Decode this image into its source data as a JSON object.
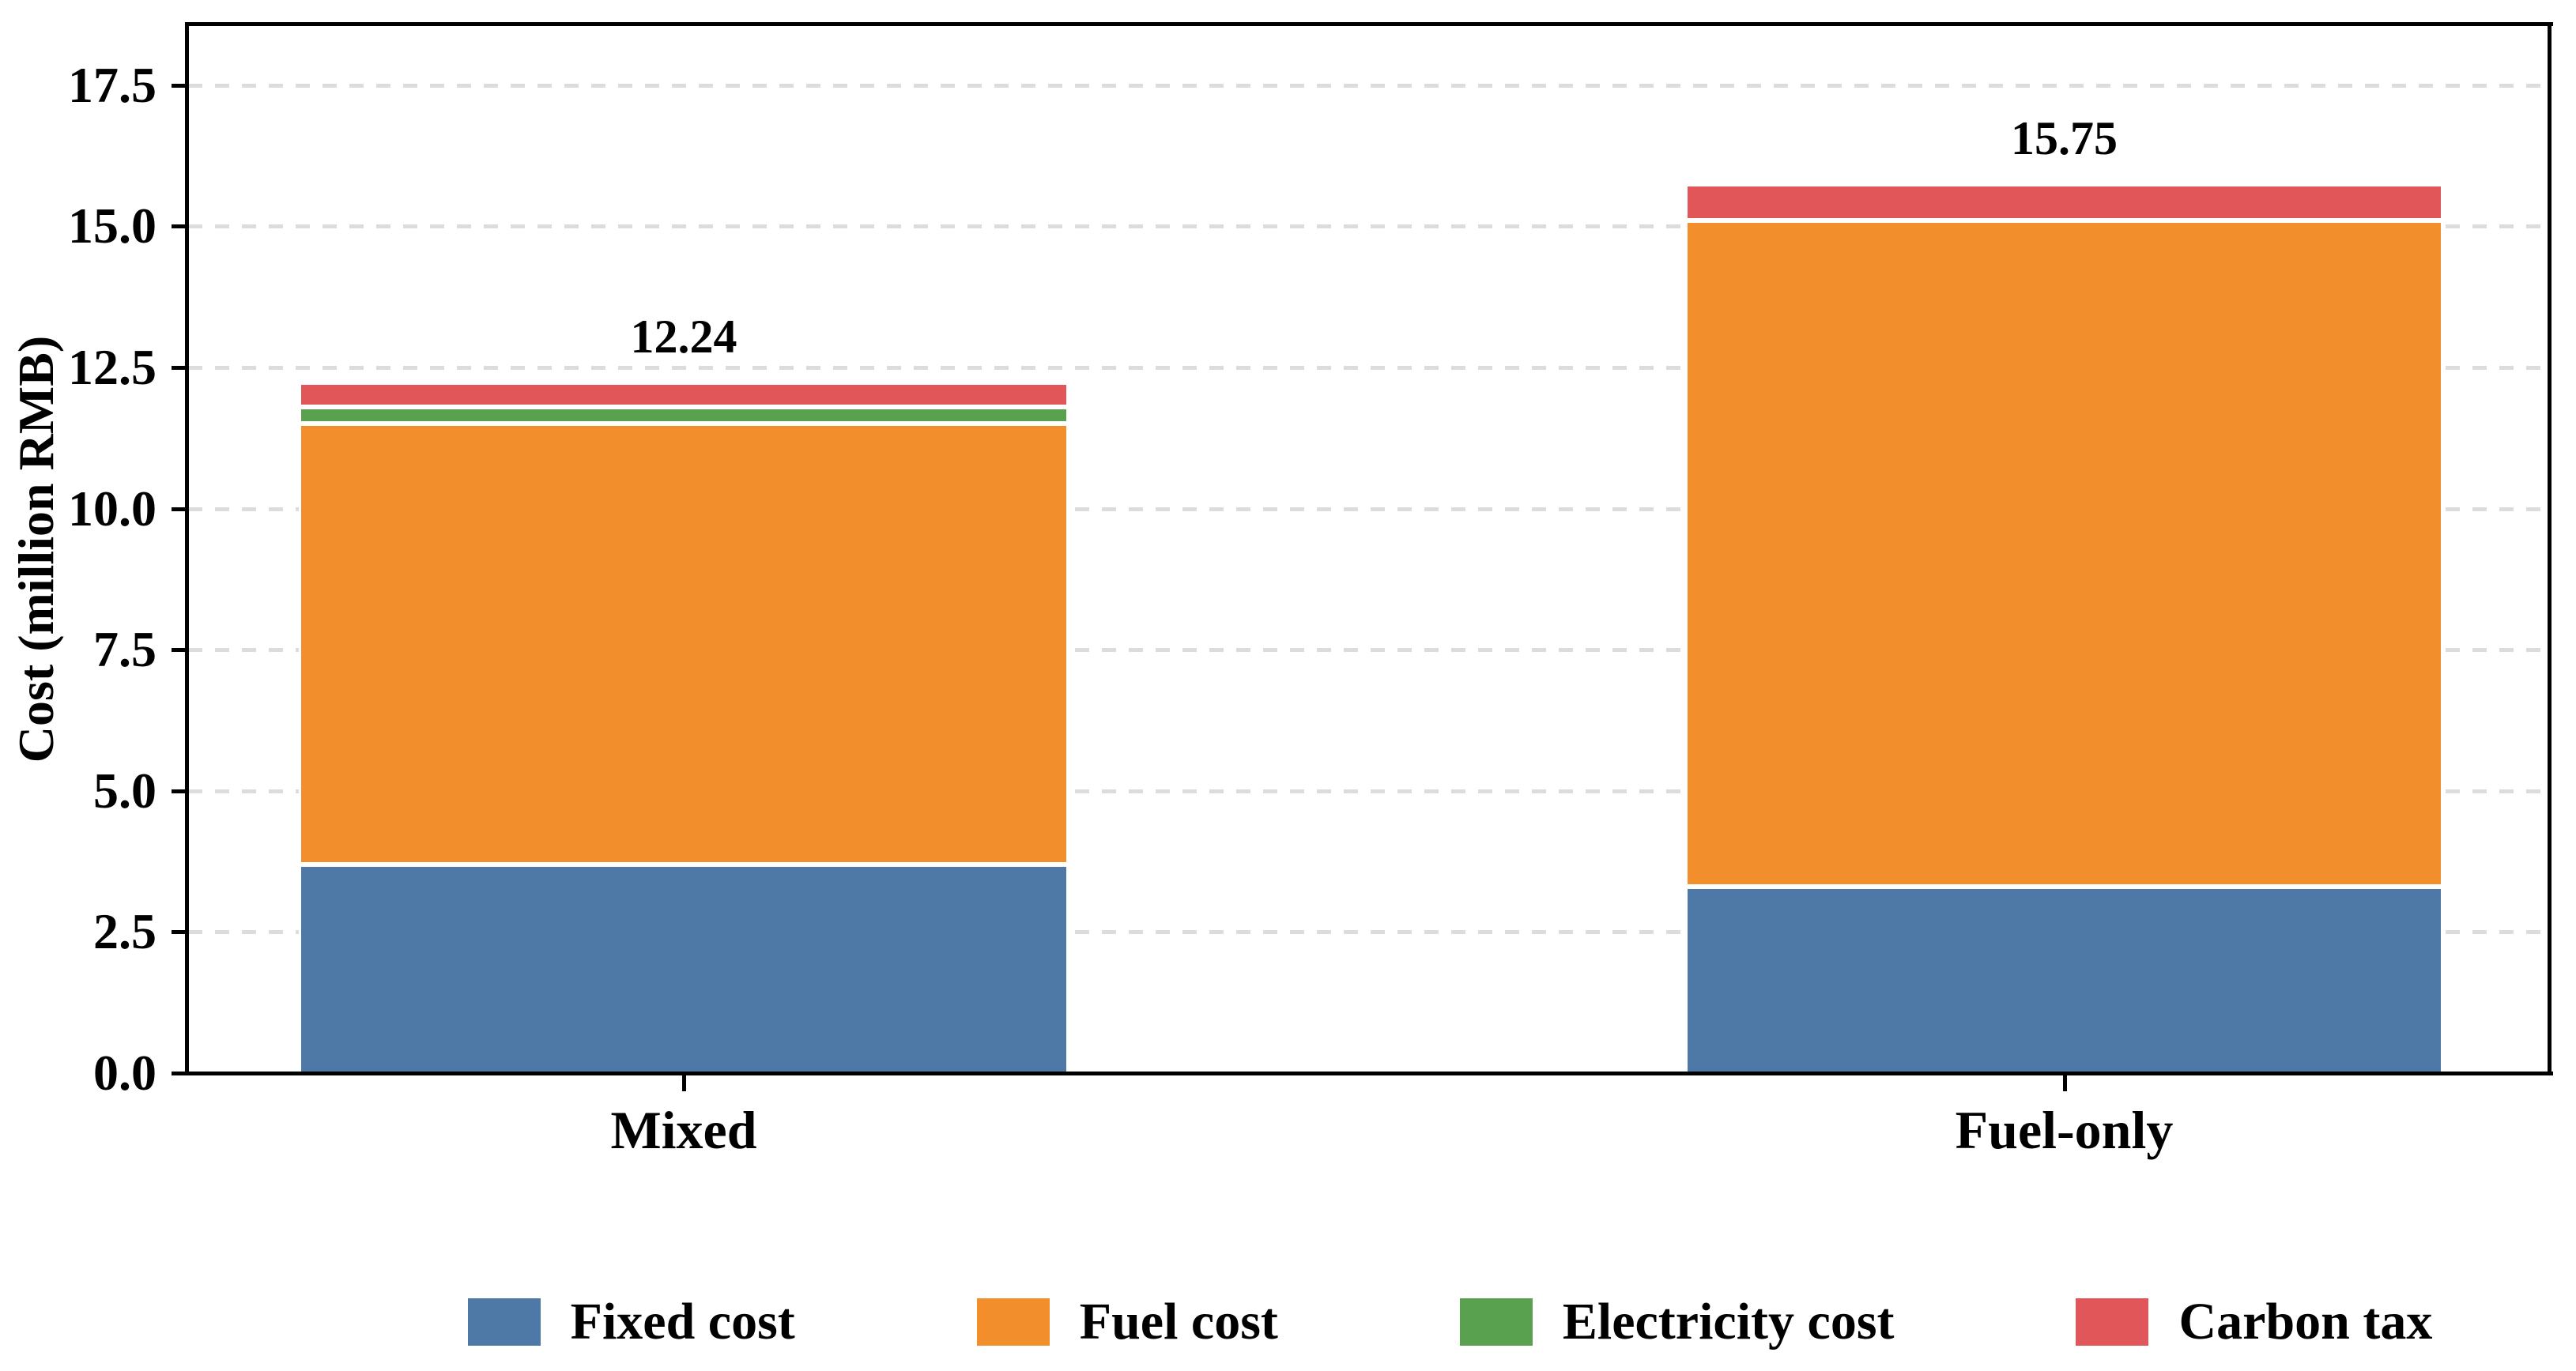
{
  "figure": {
    "background_color": "#ffffff",
    "text_color": "#000000",
    "gridline_color": "#dcdcdc",
    "bar_edge_color": "#ffffff"
  },
  "chart_data": {
    "type": "bar",
    "stacked": true,
    "categories": [
      "Mixed",
      "Fuel-only"
    ],
    "series": [
      {
        "name": "Fixed cost",
        "color": "#4E79A7",
        "values": [
          3.7,
          3.3
        ]
      },
      {
        "name": "Fuel cost",
        "color": "#F28E2B",
        "values": [
          7.8,
          11.8
        ]
      },
      {
        "name": "Electricity cost",
        "color": "#59A14F",
        "values": [
          0.3,
          0.0
        ]
      },
      {
        "name": "Carbon tax",
        "color": "#E15759",
        "values": [
          0.44,
          0.65
        ]
      }
    ],
    "totals": [
      12.24,
      15.75
    ],
    "total_labels": [
      "12.24",
      "15.75"
    ],
    "title": "",
    "xlabel": "",
    "ylabel": "Cost (million RMB)",
    "ylim": [
      0,
      18.56
    ],
    "yticks": [
      0,
      2.5,
      5,
      7.5,
      10,
      12.5,
      15,
      17.5
    ],
    "ytick_labels": [
      "0.0",
      "2.5",
      "5.0",
      "7.5",
      "10.0",
      "12.5",
      "15.0",
      "17.5"
    ],
    "grid": "horizontal-dashed",
    "legend_position": "bottom"
  }
}
